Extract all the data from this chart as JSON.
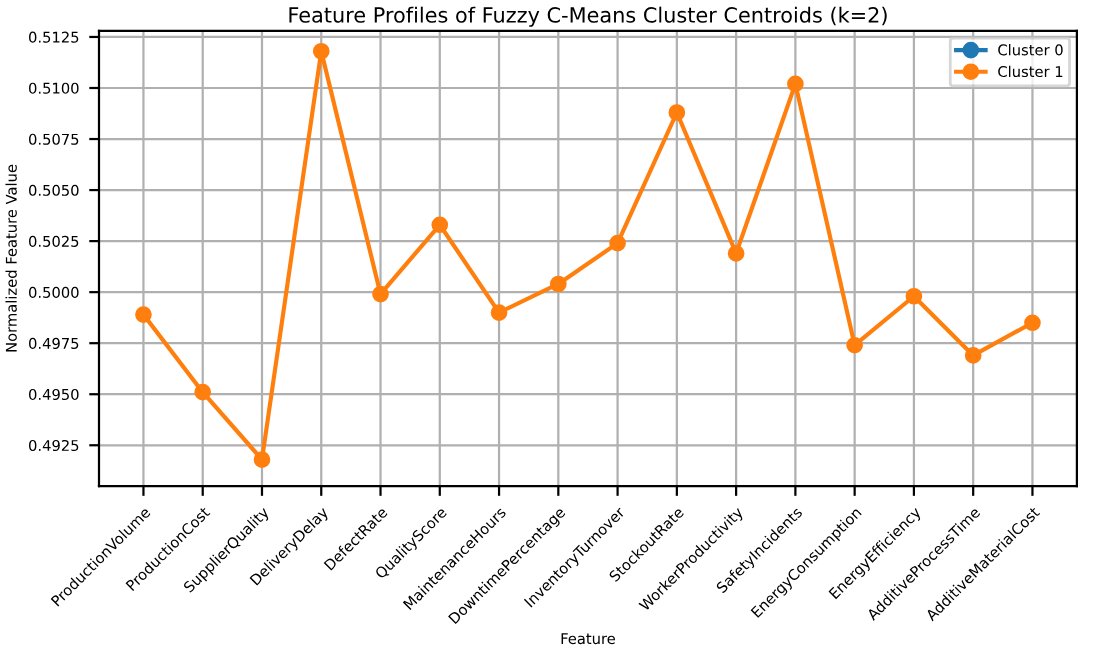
{
  "chart_data": {
    "type": "line",
    "title": "Feature Profiles of Fuzzy C-Means Cluster Centroids (k=2)",
    "xlabel": "Feature",
    "ylabel": "Normalized Feature Value",
    "categories": [
      "ProductionVolume",
      "ProductionCost",
      "SupplierQuality",
      "DeliveryDelay",
      "DefectRate",
      "QualityScore",
      "MaintenanceHours",
      "DowntimePercentage",
      "InventoryTurnover",
      "StockoutRate",
      "WorkerProductivity",
      "SafetyIncidents",
      "EnergyConsumption",
      "EnergyEfficiency",
      "AdditiveProcessTime",
      "AdditiveMaterialCost"
    ],
    "series": [
      {
        "name": "Cluster 0",
        "color": "#1f77b4",
        "values": [
          null,
          null,
          null,
          null,
          null,
          null,
          null,
          null,
          null,
          null,
          null,
          null,
          null,
          null,
          null,
          null
        ]
      },
      {
        "name": "Cluster 1",
        "color": "#ff7f0e",
        "values": [
          0.4989,
          0.4951,
          0.4918,
          0.5118,
          0.4999,
          0.5033,
          0.499,
          0.5004,
          0.5024,
          0.5088,
          0.5019,
          0.5102,
          0.4974,
          0.4998,
          0.4969,
          0.4985
        ]
      }
    ],
    "ylim": [
      0.4905,
      0.5128
    ],
    "yticks": [
      {
        "value": 0.4925,
        "label": "0.4925"
      },
      {
        "value": 0.495,
        "label": "0.4950"
      },
      {
        "value": 0.4975,
        "label": "0.4975"
      },
      {
        "value": 0.5,
        "label": "0.5000"
      },
      {
        "value": 0.5025,
        "label": "0.5025"
      },
      {
        "value": 0.505,
        "label": "0.5050"
      },
      {
        "value": 0.5075,
        "label": "0.5075"
      },
      {
        "value": 0.51,
        "label": "0.5100"
      },
      {
        "value": 0.5125,
        "label": "0.5125"
      }
    ],
    "grid": true,
    "legend": "top right",
    "marker": "circle",
    "line_style": "solid"
  }
}
